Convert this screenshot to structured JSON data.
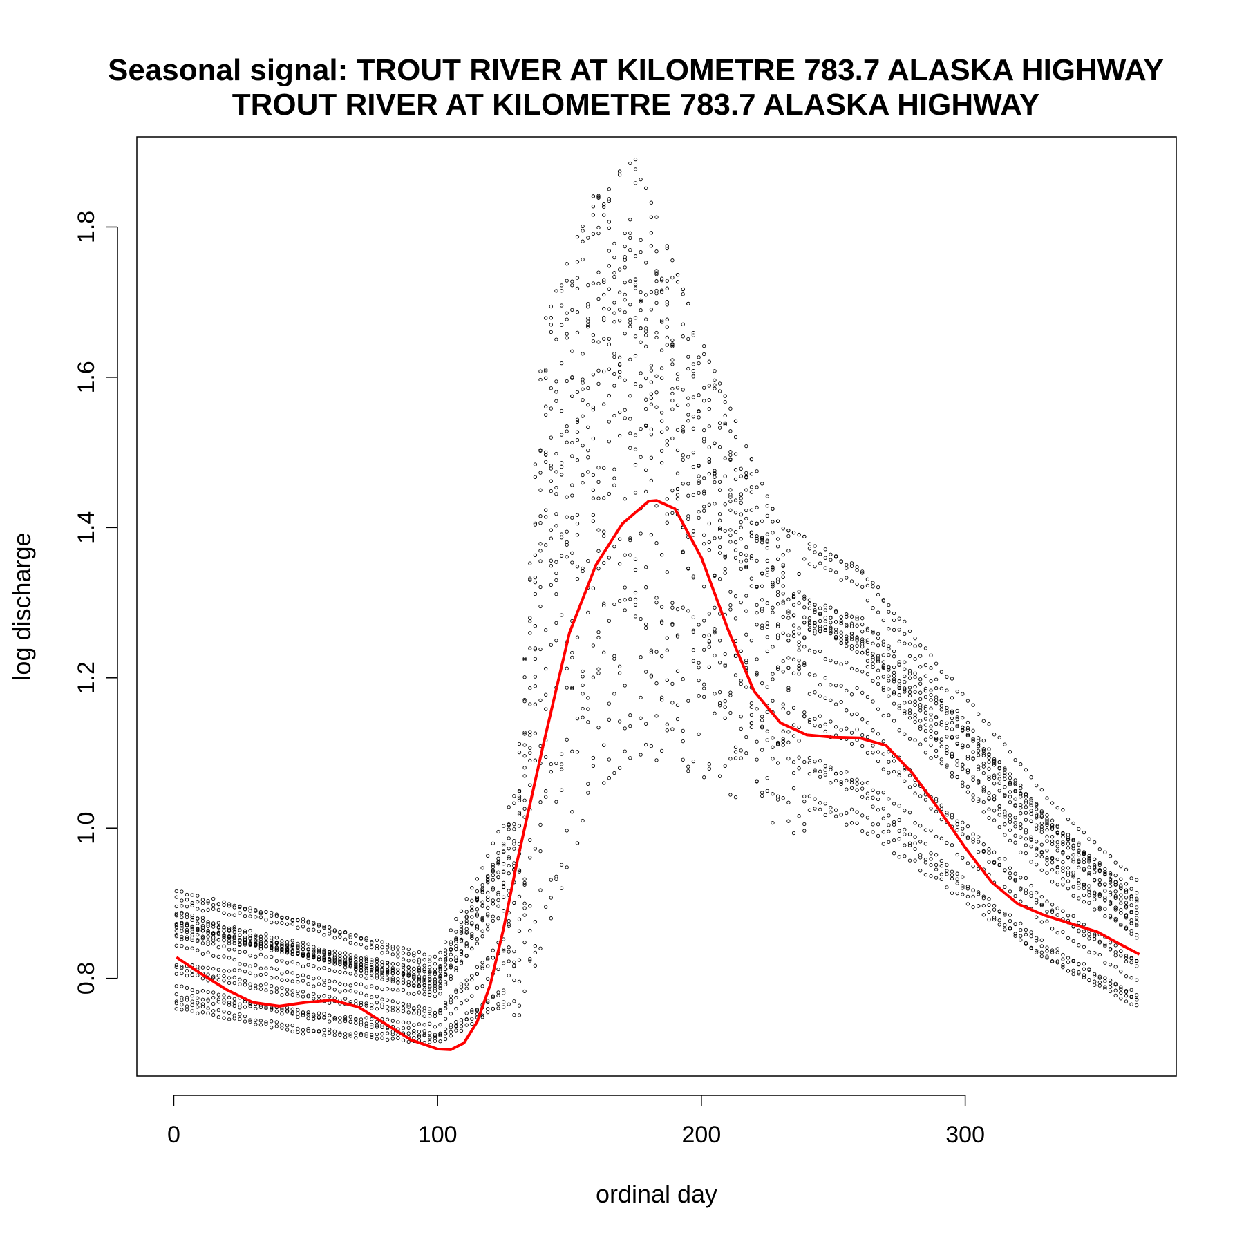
{
  "chart_data": {
    "type": "scatter",
    "title": "Seasonal signal: TROUT RIVER AT KILOMETRE 783.7 ALASKA HIGHWAY",
    "subtitle": "TROUT RIVER AT KILOMETRE 783.7 ALASKA HIGHWAY",
    "xlabel": "ordinal day",
    "ylabel": "log discharge",
    "xlim": [
      -14,
      380
    ],
    "ylim": [
      0.67,
      1.92
    ],
    "xticks": [
      "0",
      "100",
      "200",
      "300"
    ],
    "yticks": [
      "0.8",
      "1.0",
      "1.2",
      "1.4",
      "1.6",
      "1.8"
    ],
    "grid": false,
    "legend": "none",
    "series": [
      {
        "kind": "points",
        "color": "#000000",
        "marker": "open-circle",
        "x_range": [
          1,
          366
        ],
        "years_plotted": 22,
        "typical_envelope": [
          {
            "x": 1,
            "low": 0.74,
            "high": 0.92
          },
          {
            "x": 50,
            "low": 0.71,
            "high": 0.88
          },
          {
            "x": 100,
            "low": 0.7,
            "high": 0.83
          },
          {
            "x": 130,
            "low": 0.74,
            "high": 1.05
          },
          {
            "x": 140,
            "low": 0.85,
            "high": 1.67
          },
          {
            "x": 160,
            "low": 1.05,
            "high": 1.85
          },
          {
            "x": 175,
            "low": 1.1,
            "high": 1.89
          },
          {
            "x": 200,
            "low": 1.07,
            "high": 1.65
          },
          {
            "x": 230,
            "low": 1.0,
            "high": 1.4
          },
          {
            "x": 260,
            "low": 0.96,
            "high": 1.36
          },
          {
            "x": 300,
            "low": 0.87,
            "high": 1.18
          },
          {
            "x": 330,
            "low": 0.8,
            "high": 1.05
          },
          {
            "x": 366,
            "low": 0.74,
            "high": 0.93
          }
        ]
      },
      {
        "kind": "smooth-line",
        "color": "#ff0000",
        "x": [
          1,
          10,
          20,
          30,
          40,
          50,
          60,
          70,
          80,
          90,
          100,
          105,
          110,
          115,
          120,
          125,
          130,
          140,
          150,
          160,
          170,
          180,
          183,
          190,
          200,
          210,
          220,
          230,
          240,
          250,
          260,
          270,
          280,
          290,
          300,
          310,
          320,
          330,
          340,
          350,
          360,
          366
        ],
        "y": [
          0.828,
          0.807,
          0.785,
          0.768,
          0.763,
          0.768,
          0.771,
          0.762,
          0.74,
          0.718,
          0.706,
          0.705,
          0.714,
          0.742,
          0.792,
          0.866,
          0.953,
          1.11,
          1.26,
          1.35,
          1.405,
          1.435,
          1.436,
          1.425,
          1.36,
          1.265,
          1.182,
          1.14,
          1.124,
          1.121,
          1.12,
          1.11,
          1.073,
          1.025,
          0.974,
          0.928,
          0.899,
          0.884,
          0.873,
          0.862,
          0.843,
          0.832
        ]
      }
    ]
  }
}
